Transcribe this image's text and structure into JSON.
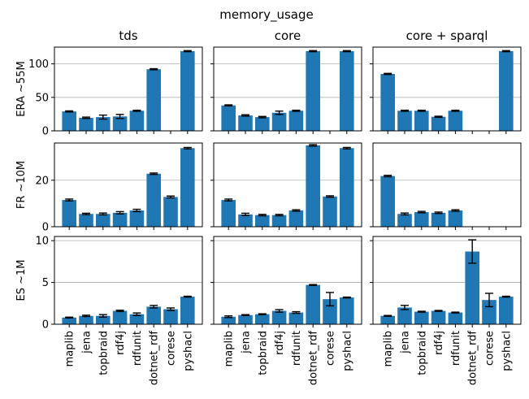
{
  "figure": {
    "suptitle": "memory_usage",
    "bar_color": "#1f77b4",
    "grid_color": "#b0b0b0",
    "categories": [
      "maplib",
      "jena",
      "topbraid",
      "rdf4j",
      "rdfunit",
      "dotnet_rdf",
      "corese",
      "pyshacl"
    ],
    "column_titles": [
      "tds",
      "core",
      "core + sparql"
    ],
    "row_labels": [
      "ERA ~55M",
      "FR ~10M",
      "ES ~1M"
    ]
  },
  "chart_data": [
    {
      "type": "bar",
      "title": "tds",
      "ylabel": "ERA ~55M",
      "ylim": [
        0,
        125
      ],
      "yticks": [
        0,
        50,
        100
      ],
      "grid": "y",
      "categories": [
        "maplib",
        "jena",
        "topbraid",
        "rdf4j",
        "rdfunit",
        "dotnet_rdf",
        "corese",
        "pyshacl"
      ],
      "values": [
        29,
        19.5,
        20.5,
        21.5,
        30,
        92,
        0,
        119
      ],
      "errors": [
        0.8,
        1.0,
        3.0,
        3.0,
        0.8,
        0.8,
        0,
        0.8
      ]
    },
    {
      "type": "bar",
      "title": "core",
      "ylabel": "",
      "ylim": [
        0,
        125
      ],
      "yticks": [
        0,
        50,
        100
      ],
      "grid": "y",
      "categories": [
        "maplib",
        "jena",
        "topbraid",
        "rdf4j",
        "rdfunit",
        "dotnet_rdf",
        "corese",
        "pyshacl"
      ],
      "values": [
        38,
        23,
        20.5,
        27,
        30,
        119,
        0,
        119
      ],
      "errors": [
        0.8,
        1.0,
        1.0,
        2.5,
        0.8,
        0.8,
        0,
        0.8
      ]
    },
    {
      "type": "bar",
      "title": "core + sparql",
      "ylabel": "",
      "ylim": [
        0,
        125
      ],
      "yticks": [
        0,
        50,
        100
      ],
      "grid": "y",
      "categories": [
        "maplib",
        "jena",
        "topbraid",
        "rdf4j",
        "rdfunit",
        "dotnet_rdf",
        "corese",
        "pyshacl"
      ],
      "values": [
        85,
        30,
        30,
        21,
        30,
        0,
        0,
        119
      ],
      "errors": [
        0.8,
        0.8,
        0.8,
        0.8,
        0.8,
        0,
        0,
        0.8
      ]
    },
    {
      "type": "bar",
      "title": "",
      "ylabel": "FR ~10M",
      "ylim": [
        0,
        36
      ],
      "yticks": [
        0,
        20
      ],
      "grid": "y",
      "categories": [
        "maplib",
        "jena",
        "topbraid",
        "rdf4j",
        "rdfunit",
        "dotnet_rdf",
        "corese",
        "pyshacl"
      ],
      "values": [
        11.5,
        5.5,
        5.5,
        6,
        7,
        22.8,
        12.8,
        33.8
      ],
      "errors": [
        0.4,
        0.3,
        0.4,
        0.5,
        0.5,
        0.3,
        0.4,
        0.3
      ]
    },
    {
      "type": "bar",
      "title": "",
      "ylabel": "",
      "ylim": [
        0,
        36
      ],
      "yticks": [
        0,
        20
      ],
      "grid": "y",
      "categories": [
        "maplib",
        "jena",
        "topbraid",
        "rdf4j",
        "rdfunit",
        "dotnet_rdf",
        "corese",
        "pyshacl"
      ],
      "values": [
        11.5,
        5.3,
        5,
        5,
        7,
        35,
        13,
        33.8
      ],
      "errors": [
        0.4,
        0.5,
        0.3,
        0.3,
        0.3,
        0.3,
        0.3,
        0.3
      ]
    },
    {
      "type": "bar",
      "title": "",
      "ylabel": "",
      "ylim": [
        0,
        36
      ],
      "yticks": [
        0,
        20
      ],
      "grid": "y",
      "categories": [
        "maplib",
        "jena",
        "topbraid",
        "rdf4j",
        "rdfunit",
        "dotnet_rdf",
        "corese",
        "pyshacl"
      ],
      "values": [
        21.8,
        5.5,
        6.3,
        6,
        7,
        0,
        0,
        0
      ],
      "errors": [
        0.3,
        0.4,
        0.3,
        0.3,
        0.3,
        0,
        0,
        0
      ]
    },
    {
      "type": "bar",
      "title": "",
      "ylabel": "ES ~1M",
      "ylim": [
        0,
        10.5
      ],
      "yticks": [
        0,
        5,
        10
      ],
      "grid": "y",
      "categories": [
        "maplib",
        "jena",
        "topbraid",
        "rdf4j",
        "rdfunit",
        "dotnet_rdf",
        "corese",
        "pyshacl"
      ],
      "values": [
        0.8,
        1.0,
        1.0,
        1.6,
        1.2,
        2.1,
        1.8,
        3.3
      ],
      "errors": [
        0.05,
        0.08,
        0.15,
        0.08,
        0.15,
        0.15,
        0.15,
        0.05
      ]
    },
    {
      "type": "bar",
      "title": "",
      "ylabel": "",
      "ylim": [
        0,
        10.5
      ],
      "yticks": [
        0,
        5,
        10
      ],
      "grid": "y",
      "categories": [
        "maplib",
        "jena",
        "topbraid",
        "rdf4j",
        "rdfunit",
        "dotnet_rdf",
        "corese",
        "pyshacl"
      ],
      "values": [
        0.9,
        1.1,
        1.2,
        1.6,
        1.4,
        4.7,
        3.0,
        3.2
      ],
      "errors": [
        0.1,
        0.05,
        0.05,
        0.15,
        0.1,
        0.05,
        0.8,
        0.05
      ]
    },
    {
      "type": "bar",
      "title": "",
      "ylabel": "",
      "ylim": [
        0,
        10.5
      ],
      "yticks": [
        0,
        5,
        10
      ],
      "grid": "y",
      "categories": [
        "maplib",
        "jena",
        "topbraid",
        "rdf4j",
        "rdfunit",
        "dotnet_rdf",
        "corese",
        "pyshacl"
      ],
      "values": [
        1.0,
        2.0,
        1.5,
        1.6,
        1.4,
        8.7,
        2.9,
        3.3
      ],
      "errors": [
        0.05,
        0.25,
        0.05,
        0.05,
        0.05,
        1.4,
        0.8,
        0.05
      ]
    }
  ]
}
